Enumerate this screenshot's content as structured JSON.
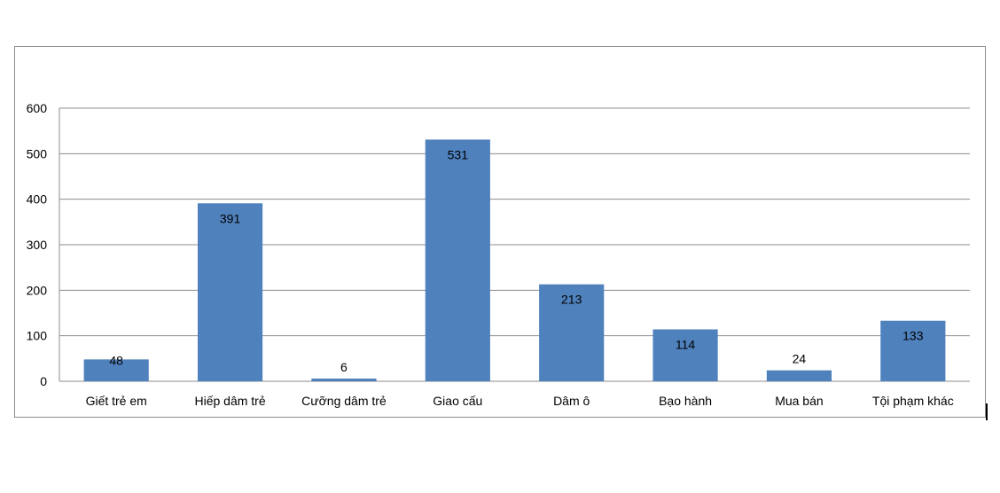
{
  "chart_data": {
    "type": "bar",
    "categories": [
      "Giết trẻ em",
      "Hiếp dâm trẻ",
      "Cưỡng dâm trẻ",
      "Giao cấu",
      "Dâm ô",
      "Bạo hành",
      "Mua bán",
      "Tội phạm khác"
    ],
    "values": [
      48,
      391,
      6,
      531,
      213,
      114,
      24,
      133
    ],
    "value_labels": [
      "48",
      "391",
      "6",
      "531",
      "213",
      "114",
      "24",
      "133"
    ],
    "yticks": [
      "0",
      "100",
      "200",
      "300",
      "400",
      "500",
      "600"
    ],
    "ylim": [
      0,
      600
    ],
    "grid": true,
    "legend": "none",
    "bar_color": "#4f81bd",
    "grid_color": "#8c8c8c",
    "axis_text_color": "#000000"
  }
}
